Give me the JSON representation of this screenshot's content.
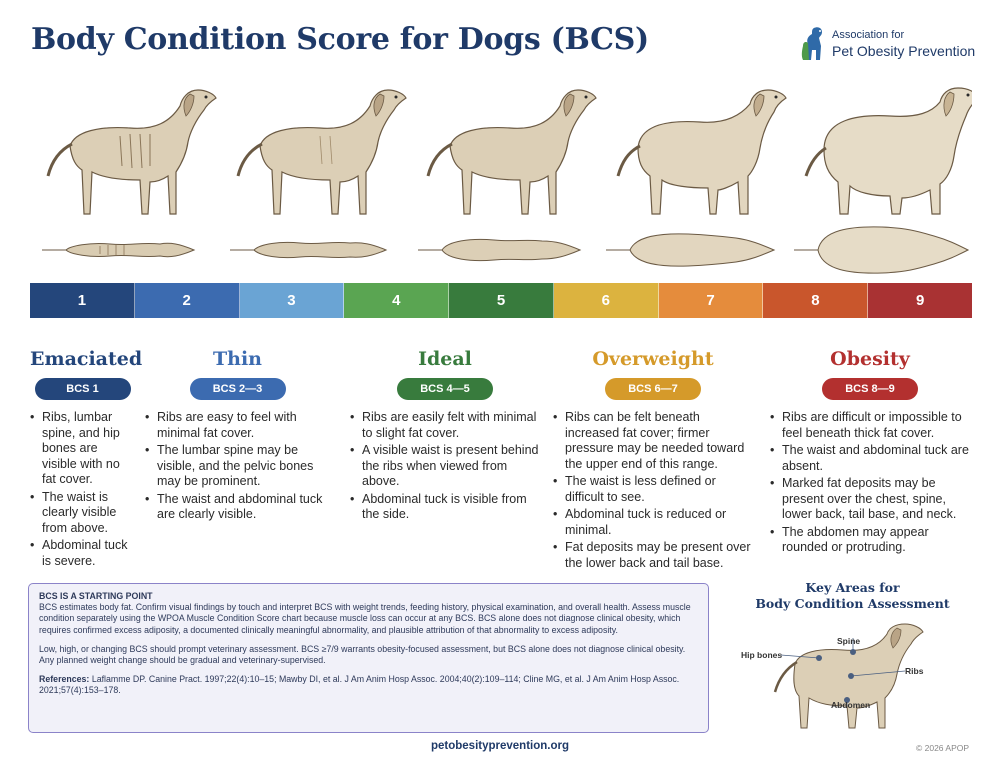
{
  "title": "Body Condition Score for Dogs (BCS)",
  "logo": {
    "line1": "Association for",
    "line2": "Pet Obesity Prevention",
    "icon": "dog-cat-silhouette-icon"
  },
  "scale": [
    {
      "label": "1",
      "color": "#24467b"
    },
    {
      "label": "2",
      "color": "#3c6bb0"
    },
    {
      "label": "3",
      "color": "#6aa4d4"
    },
    {
      "label": "4",
      "color": "#5aa552"
    },
    {
      "label": "5",
      "color": "#387b3d"
    },
    {
      "label": "6",
      "color": "#dcb33f"
    },
    {
      "label": "7",
      "color": "#e58c3c"
    },
    {
      "label": "8",
      "color": "#c9562c"
    },
    {
      "label": "9",
      "color": "#a93233"
    }
  ],
  "categories": [
    {
      "title": "Emaciated",
      "badge": "BCS 1",
      "color": "#24467b",
      "bullets": [
        "Ribs, lumbar spine, and hip bones are visible with no fat cover.",
        "The waist is clearly visible from above.",
        "Abdominal tuck is severe."
      ]
    },
    {
      "title": "Thin",
      "badge": "BCS 2—3",
      "color": "#3c6bb0",
      "bullets": [
        "Ribs are easy to feel with minimal fat cover.",
        "The lumbar spine may be visible, and the pelvic bones may be prominent.",
        "The waist and abdominal tuck are clearly visible."
      ]
    },
    {
      "title": "Ideal",
      "badge": "BCS 4—5",
      "color": "#387b3d",
      "bullets": [
        "Ribs are easily felt with minimal to slight fat cover.",
        "A visible waist is present behind the ribs when viewed from above.",
        "Abdominal tuck is visible from the side."
      ]
    },
    {
      "title": "Overweight",
      "badge": "BCS 6—7",
      "color": "#d59a2a",
      "bullets": [
        "Ribs can be felt beneath increased fat cover; firmer pressure may be needed toward the upper end of this range.",
        "The waist is less defined or difficult to see.",
        "Abdominal tuck is reduced or minimal.",
        "Fat deposits may be present over the lower back and tail base."
      ]
    },
    {
      "title": "Obesity",
      "badge": "BCS 8—9",
      "color": "#b3302f",
      "bullets": [
        "Ribs are difficult or impossible to feel beneath thick fat cover.",
        "The waist and abdominal tuck are absent.",
        "Marked fat deposits may be present over the chest, spine, lower back, tail base, and neck.",
        "The abdomen may appear rounded or protruding."
      ]
    }
  ],
  "note": {
    "heading": "BCS IS A STARTING POINT",
    "para1": "BCS estimates body fat. Confirm visual findings by touch and interpret BCS with weight trends, feeding history, physical examination, and overall health. Assess muscle condition separately using the WPOA Muscle Condition Score chart because muscle loss can occur at any BCS.  BCS alone does not diagnose clinical obesity, which requires confirmed excess adiposity, a documented clinically meaningful abnormality, and plausible attribution of that abnormality to excess adiposity.",
    "para2": "Low, high, or changing BCS should prompt veterinary assessment. BCS ≥7/9 warrants obesity-focused assessment, but BCS alone does not diagnose clinical obesity. Any planned weight change should be gradual and veterinary-supervised.",
    "refs_label": "References:",
    "refs_text": "Laflamme DP. Canine Pract. 1997;22(4):10–15; Mawby DI, et al. J Am Anim Hosp Assoc. 2004;40(2):109–114; Cline MG, et al. J Am Anim Hosp Assoc. 2021;57(4):153–178."
  },
  "key_areas": {
    "title_line1": "Key Areas for",
    "title_line2": "Body Condition Assessment",
    "labels": {
      "hip": "Hip bones",
      "spine": "Spine",
      "ribs": "Ribs",
      "abdomen": "Abdomen"
    }
  },
  "footer": {
    "url": "petobesityprevention.org",
    "copyright": "© 2026 APOP"
  }
}
